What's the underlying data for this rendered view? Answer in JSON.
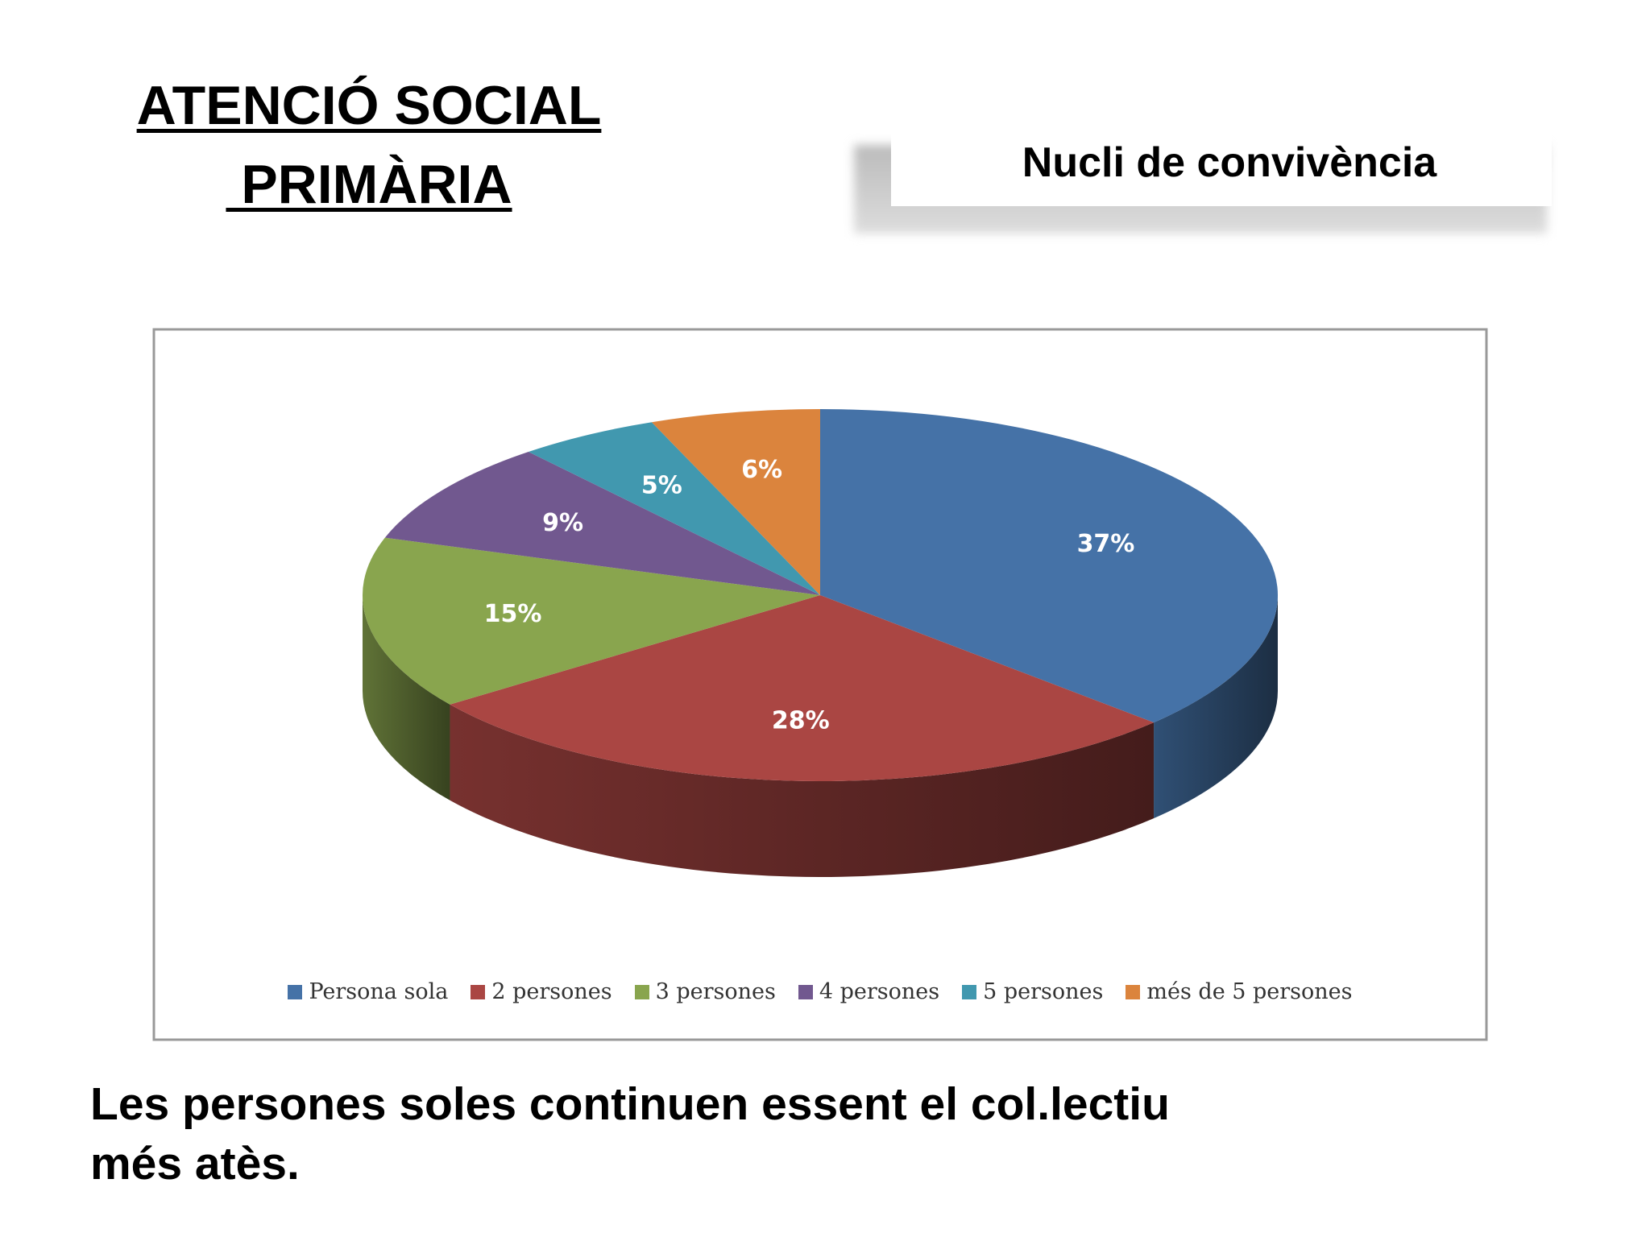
{
  "slide_title": [
    "ATENCIÓ SOCIAL",
    " PRIMÀRIA"
  ],
  "caption": [
    "Les persones soles continuen essent el col.lectiu",
    "més atès."
  ],
  "chart_data": {
    "type": "pie",
    "title": "Nucli de convivència",
    "categories": [
      "Persona sola",
      "2 persones",
      "3 persones",
      "4 persones",
      "5 persones",
      "més de 5 persones"
    ],
    "values": [
      37,
      28,
      15,
      9,
      5,
      6
    ],
    "value_labels": [
      "37%",
      "28%",
      "15%",
      "9%",
      "5%",
      "6%"
    ],
    "colors": [
      "#4572a7",
      "#aa4643",
      "#89a54e",
      "#71588f",
      "#4198af",
      "#db843d"
    ],
    "legend": "bottom"
  }
}
